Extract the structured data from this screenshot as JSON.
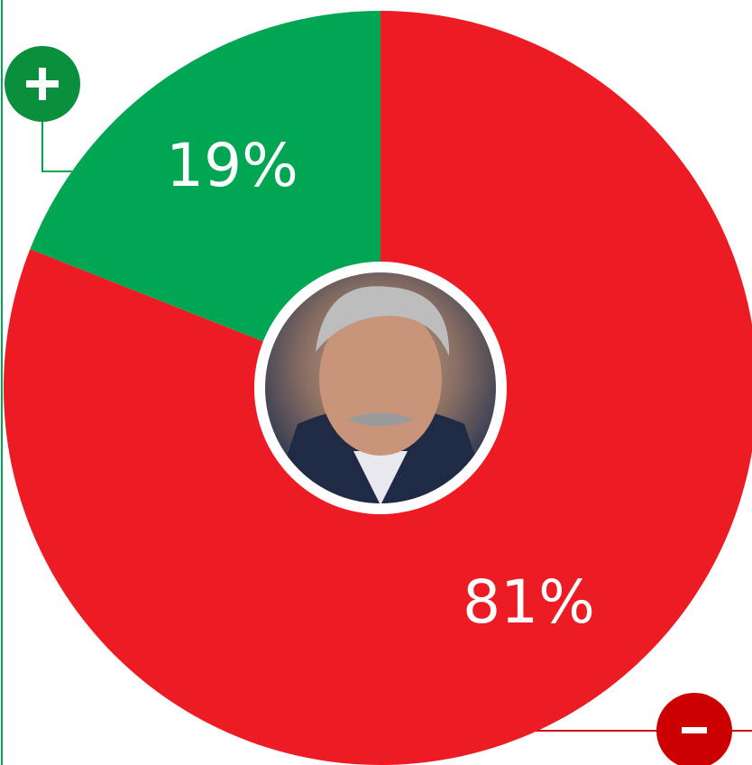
{
  "chart_data": {
    "type": "pie",
    "values": [
      81,
      19
    ],
    "value_labels": [
      "81%",
      "19%"
    ],
    "colors": [
      "#ed1c24",
      "#00a651"
    ],
    "start_angle": 0,
    "direction": "clockwise"
  }
}
